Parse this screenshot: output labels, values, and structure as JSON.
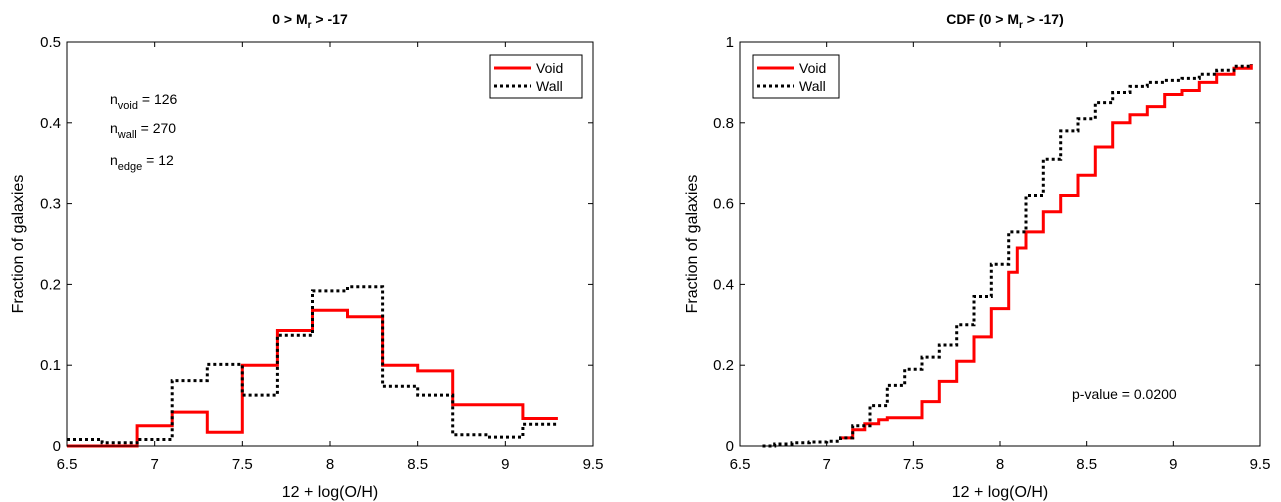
{
  "chart_data": [
    {
      "type": "line",
      "step": "histogram",
      "title": {
        "main": "0 > M",
        "sub": "r",
        "rest": " > -17"
      },
      "xlabel": "12 + log(O/H)",
      "ylabel": "Fraction of galaxies",
      "xlim": [
        6.5,
        9.5
      ],
      "ylim": [
        0,
        0.5
      ],
      "xticks": [
        "6.5",
        "7",
        "7.5",
        "8",
        "8.5",
        "9",
        "9.5"
      ],
      "yticks": [
        "0",
        "0.1",
        "0.2",
        "0.3",
        "0.4",
        "0.5"
      ],
      "xtick_values": [
        6.5,
        7,
        7.5,
        8,
        8.5,
        9,
        9.5
      ],
      "ytick_values": [
        0,
        0.1,
        0.2,
        0.3,
        0.4,
        0.5
      ],
      "legend": {
        "position": "top-right",
        "entries": [
          "Void",
          "Wall"
        ]
      },
      "series": [
        {
          "name": "Void",
          "color": "#ff0000",
          "style": "solid",
          "edges": [
            6.5,
            6.9,
            7.1,
            7.3,
            7.5,
            7.7,
            7.9,
            8.1,
            8.3,
            8.5,
            8.7,
            8.9,
            9.1,
            9.3
          ],
          "values": [
            0.0,
            0.025,
            0.042,
            0.017,
            0.1,
            0.143,
            0.168,
            0.16,
            0.1,
            0.093,
            0.051,
            0.051,
            0.034
          ]
        },
        {
          "name": "Wall",
          "color": "#000000",
          "style": "dotted",
          "edges": [
            6.5,
            6.7,
            6.9,
            7.1,
            7.3,
            7.5,
            7.7,
            7.9,
            8.1,
            8.3,
            8.5,
            8.7,
            8.9,
            9.1,
            9.3
          ],
          "values": [
            0.008,
            0.004,
            0.008,
            0.081,
            0.101,
            0.063,
            0.137,
            0.192,
            0.197,
            0.074,
            0.063,
            0.014,
            0.011,
            0.027
          ]
        }
      ],
      "annotations": [
        {
          "base": "n",
          "sub": "void",
          "text": " = 126"
        },
        {
          "base": "n",
          "sub": "wall",
          "text": " = 270"
        },
        {
          "base": "n",
          "sub": "edge",
          "text": " = 12"
        }
      ],
      "grid": false
    },
    {
      "type": "line",
      "title": {
        "main": "CDF (0 > M",
        "sub": "r",
        "rest": " > -17)"
      },
      "xlabel": "12 + log(O/H)",
      "ylabel": "Fraction of galaxies",
      "xlim": [
        6.5,
        9.5
      ],
      "ylim": [
        0,
        1
      ],
      "xticks": [
        "6.5",
        "7",
        "7.5",
        "8",
        "8.5",
        "9",
        "9.5"
      ],
      "yticks": [
        "0",
        "0.2",
        "0.4",
        "0.6",
        "0.8",
        "1"
      ],
      "xtick_values": [
        6.5,
        7,
        7.5,
        8,
        8.5,
        9,
        9.5
      ],
      "ytick_values": [
        0,
        0.2,
        0.4,
        0.6,
        0.8,
        1
      ],
      "legend": {
        "position": "top-left",
        "entries": [
          "Void",
          "Wall"
        ]
      },
      "series": [
        {
          "name": "Void",
          "color": "#ff0000",
          "style": "solid",
          "x": [
            7.08,
            7.15,
            7.22,
            7.3,
            7.35,
            7.45,
            7.55,
            7.65,
            7.75,
            7.85,
            7.95,
            8.05,
            8.1,
            8.15,
            8.25,
            8.35,
            8.45,
            8.55,
            8.65,
            8.75,
            8.85,
            8.95,
            9.05,
            9.15,
            9.25,
            9.35,
            9.45
          ],
          "y": [
            0.02,
            0.04,
            0.055,
            0.065,
            0.07,
            0.07,
            0.11,
            0.16,
            0.21,
            0.27,
            0.34,
            0.43,
            0.49,
            0.53,
            0.58,
            0.62,
            0.67,
            0.74,
            0.8,
            0.82,
            0.84,
            0.87,
            0.88,
            0.9,
            0.92,
            0.935,
            0.945
          ]
        },
        {
          "name": "Wall",
          "color": "#000000",
          "style": "dotted",
          "x": [
            6.63,
            6.7,
            6.8,
            6.9,
            7.0,
            7.08,
            7.15,
            7.25,
            7.35,
            7.45,
            7.55,
            7.65,
            7.75,
            7.85,
            7.95,
            8.05,
            8.15,
            8.25,
            8.35,
            8.45,
            8.55,
            8.65,
            8.75,
            8.85,
            8.95,
            9.05,
            9.15,
            9.25,
            9.35,
            9.45
          ],
          "y": [
            0.0,
            0.005,
            0.008,
            0.01,
            0.012,
            0.02,
            0.05,
            0.1,
            0.15,
            0.19,
            0.22,
            0.25,
            0.3,
            0.37,
            0.45,
            0.53,
            0.62,
            0.71,
            0.78,
            0.81,
            0.85,
            0.875,
            0.89,
            0.9,
            0.905,
            0.91,
            0.92,
            0.93,
            0.94,
            0.945
          ]
        }
      ],
      "annotations": [
        {
          "text": "p-value = 0.0200"
        }
      ],
      "grid": false
    }
  ]
}
